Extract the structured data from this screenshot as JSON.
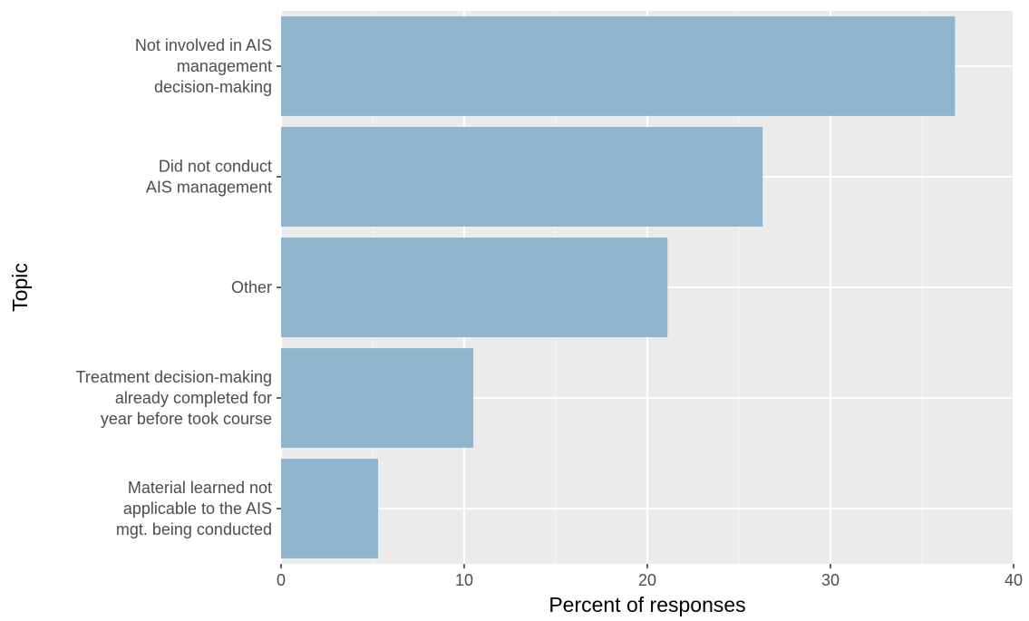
{
  "chart_data": {
    "type": "bar",
    "orientation": "horizontal",
    "xlabel": "Percent of responses",
    "ylabel": "Topic",
    "xlim": [
      0,
      40
    ],
    "x_ticks": [
      0,
      10,
      20,
      30,
      40
    ],
    "grid": true,
    "categories": [
      {
        "lines": [
          "Not involved in AIS",
          "management",
          "decision-making"
        ]
      },
      {
        "lines": [
          "Did not conduct",
          "AIS management"
        ]
      },
      {
        "lines": [
          "Other"
        ]
      },
      {
        "lines": [
          "Treatment decision-making",
          "already completed for",
          "year before took course"
        ]
      },
      {
        "lines": [
          "Material learned not",
          "applicable to the AIS",
          "mgt. being conducted"
        ]
      }
    ],
    "values": [
      36.8,
      26.3,
      21.1,
      10.5,
      5.3
    ],
    "colors": {
      "bar": "#8fb4cc",
      "panel": "#ebebeb",
      "grid_major": "#ffffff",
      "grid_minor": "#f5f5f5",
      "tick_text": "#4d4d4d",
      "tick_mark": "#333333"
    }
  }
}
